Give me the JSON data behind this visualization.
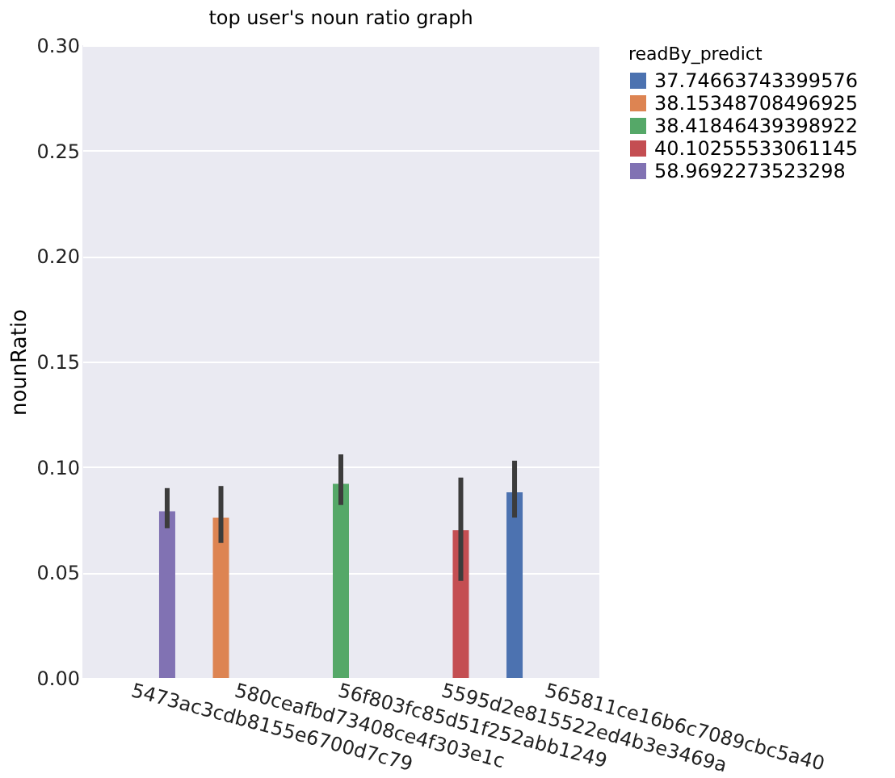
{
  "chart_data": {
    "type": "bar",
    "title": "top user's noun ratio graph",
    "xlabel": null,
    "ylabel": "nounRatio",
    "legend_title": "readBy_predict",
    "categories": [
      "5473ac3cdb8155e6700d7c79",
      "580ceafbd73408ce4f303e1c",
      "56f803fc85d51f252abb1249",
      "5595d2e815522ed4b3e3469a",
      "565811ce16b6c7089cbc5a40"
    ],
    "series": [
      {
        "name": "37.74663743399576",
        "color": "#4c72b0",
        "values": [
          null,
          null,
          null,
          null,
          0.088
        ],
        "errors": [
          null,
          null,
          null,
          null,
          [
            0.076,
            0.103
          ]
        ]
      },
      {
        "name": "38.15348708496925",
        "color": "#dd8452",
        "values": [
          null,
          0.076,
          null,
          null,
          null
        ],
        "errors": [
          null,
          [
            0.064,
            0.091
          ],
          null,
          null,
          null
        ]
      },
      {
        "name": "38.41846439398922",
        "color": "#55a868",
        "values": [
          null,
          null,
          0.092,
          null,
          null
        ],
        "errors": [
          null,
          null,
          [
            0.082,
            0.106
          ],
          null,
          null
        ]
      },
      {
        "name": "40.10255533061145",
        "color": "#c44e52",
        "values": [
          null,
          null,
          null,
          0.07,
          null
        ],
        "errors": [
          null,
          null,
          null,
          [
            0.046,
            0.095
          ],
          null
        ]
      },
      {
        "name": "58.9692273523298",
        "color": "#8172b3",
        "values": [
          0.079,
          null,
          null,
          null,
          null
        ],
        "errors": [
          [
            0.071,
            0.09
          ],
          null,
          null,
          null,
          null
        ]
      }
    ],
    "ylim": [
      0,
      0.3
    ],
    "yticks": [
      {
        "value": 0,
        "label": "0.00"
      },
      {
        "value": 0.05,
        "label": "0.05"
      },
      {
        "value": 0.1,
        "label": "0.10"
      },
      {
        "value": 0.15,
        "label": "0.15"
      },
      {
        "value": 0.2,
        "label": "0.20"
      },
      {
        "value": 0.25,
        "label": "0.25"
      },
      {
        "value": 0.3,
        "label": "0.30"
      }
    ],
    "grid": "y",
    "legend": "right"
  }
}
